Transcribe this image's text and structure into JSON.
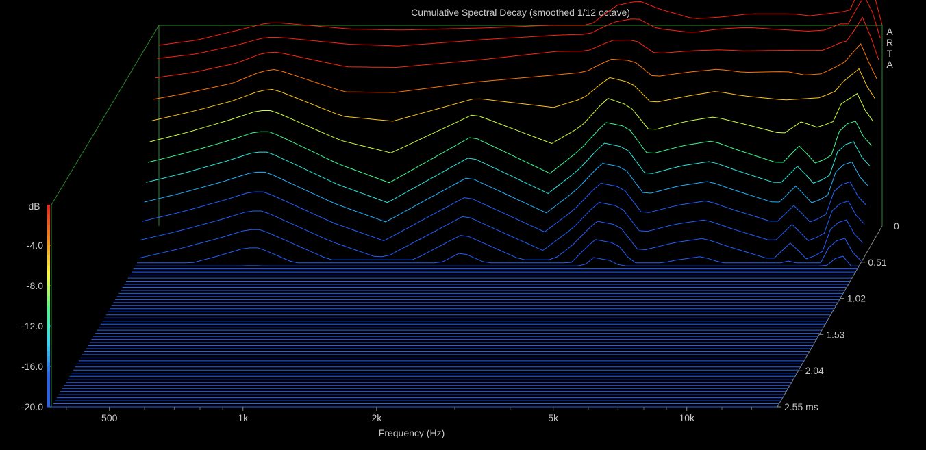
{
  "chart_data": {
    "type": "waterfall",
    "title": "Cumulative Spectral Decay (smoothed 1/12 octave)",
    "xlabel": "Frequency (Hz)",
    "zlabel": "dB",
    "branding": [
      "A",
      "R",
      "T",
      "A"
    ],
    "x_scale": "log",
    "xlim": [
      370,
      16000
    ],
    "x_ticks": [
      500,
      1000,
      2000,
      5000,
      10000
    ],
    "x_tick_labels": [
      "500",
      "1k",
      "2k",
      "5k",
      "10k"
    ],
    "z_range": [
      -20,
      0
    ],
    "z_ticks": [
      0,
      -4,
      -8,
      -12,
      -16,
      -20
    ],
    "z_tick_labels": [
      "0",
      "-4.0",
      "-8.0",
      "-12.0",
      "-16.0",
      "-20.0"
    ],
    "z_top_tick_label": "0",
    "time_range_ms": [
      0,
      2.55
    ],
    "time_ticks_ms": [
      0,
      0.51,
      1.02,
      1.53,
      2.04,
      2.55
    ],
    "time_tick_labels": [
      "",
      "0.51",
      "1.02",
      "1.53",
      "2.04",
      "2.55 ms"
    ],
    "color_scale": [
      "#ff2010",
      "#ff8a00",
      "#ffff20",
      "#40ff80",
      "#20e0ff",
      "#2060ff"
    ],
    "slices": [
      {
        "t_ms": 0.0,
        "freqs": [
          370,
          450,
          560,
          650,
          700,
          1000,
          1300,
          2000,
          3000,
          3500,
          4000,
          4500,
          5000,
          6000,
          7000,
          8000,
          10000,
          11000,
          12000,
          13000,
          13500,
          14000,
          14500,
          15000,
          16000
        ],
        "db": [
          -2.1,
          -1.6,
          -0.6,
          0.1,
          0.1,
          -0.5,
          -0.6,
          -0.4,
          -0.1,
          -0.1,
          1.8,
          2.3,
          1.5,
          0.5,
          0.7,
          1.0,
          1.0,
          0.8,
          1.0,
          1.2,
          1.3,
          2.5,
          5.3,
          4.5,
          -0.1
        ]
      },
      {
        "t_ms": 0.05,
        "freqs": [
          370,
          450,
          560,
          650,
          700,
          1000,
          1300,
          2000,
          3000,
          3500,
          4000,
          4500,
          5000,
          6000,
          7000,
          8000,
          10000,
          11000,
          12000,
          13000,
          13500,
          14000,
          14500,
          15000,
          16000
        ],
        "db": [
          -3.0,
          -2.6,
          -1.7,
          -0.9,
          -0.9,
          -1.6,
          -1.8,
          -1.1,
          -0.6,
          -0.5,
          0.6,
          1.0,
          -0.1,
          -0.4,
          0.0,
          0.1,
          -0.2,
          -0.3,
          -0.2,
          0.5,
          0.4,
          1.5,
          3.2,
          3.0,
          -1.0
        ]
      },
      {
        "t_ms": 0.1,
        "freqs": [
          370,
          450,
          560,
          650,
          700,
          1000,
          1300,
          2000,
          3000,
          3500,
          4000,
          4500,
          5000,
          6000,
          7000,
          8000,
          10000,
          11000,
          12000,
          13000,
          13500,
          14000,
          14500,
          15000,
          16000
        ],
        "db": [
          -4.8,
          -4.2,
          -3.3,
          -2.1,
          -2.0,
          -3.8,
          -3.8,
          -3.0,
          -2.0,
          -2.0,
          -0.9,
          -1.0,
          -2.5,
          -2.0,
          -2.0,
          -2.2,
          -2.0,
          -2.0,
          -2.0,
          -1.3,
          -1.0,
          -0.5,
          2.0,
          0.5,
          -3.0
        ]
      },
      {
        "t_ms": 0.15,
        "freqs": [
          370,
          450,
          560,
          650,
          700,
          1000,
          1300,
          2000,
          3000,
          3500,
          4000,
          4500,
          5000,
          6000,
          7000,
          8000,
          10000,
          11000,
          12000,
          13000,
          13500,
          14000,
          14500,
          15000,
          16000
        ],
        "db": [
          -6.8,
          -6.0,
          -5.0,
          -3.8,
          -3.5,
          -6.2,
          -6.3,
          -5.0,
          -4.5,
          -4.0,
          -2.5,
          -2.7,
          -4.5,
          -4.0,
          -3.5,
          -3.9,
          -3.9,
          -4.5,
          -4.3,
          -3.5,
          -3.0,
          -2.5,
          -0.5,
          -2.5,
          -4.5
        ]
      },
      {
        "t_ms": 0.2,
        "freqs": [
          370,
          450,
          560,
          650,
          700,
          1000,
          1300,
          2000,
          3000,
          3500,
          4000,
          4500,
          5000,
          6000,
          7000,
          8000,
          10000,
          11000,
          12000,
          13000,
          13500,
          14000,
          14500,
          15000,
          16000
        ],
        "db": [
          -8.8,
          -7.8,
          -6.5,
          -5.5,
          -5.5,
          -8.5,
          -9.5,
          -5.8,
          -8.5,
          -7.0,
          -4.0,
          -5.0,
          -7.5,
          -6.5,
          -6.0,
          -6.5,
          -7.5,
          -6.5,
          -6.5,
          -6.0,
          -4.5,
          -4.5,
          -2.5,
          -4.5,
          -6.5
        ]
      },
      {
        "t_ms": 0.25,
        "freqs": [
          370,
          450,
          560,
          650,
          700,
          1000,
          1300,
          2000,
          3000,
          3500,
          4000,
          4500,
          5000,
          6000,
          7000,
          8000,
          10000,
          11000,
          12000,
          13000,
          13500,
          14000,
          14500,
          15000,
          16000
        ],
        "db": [
          -10.8,
          -9.8,
          -8.5,
          -7.5,
          -7.5,
          -11.0,
          -13.0,
          -8.0,
          -12.0,
          -9.5,
          -6.5,
          -7.0,
          -10.0,
          -9.0,
          -8.5,
          -9.5,
          -11.0,
          -9.0,
          -11.0,
          -10.0,
          -7.5,
          -7.0,
          -5.5,
          -7.5,
          -9.0
        ]
      }
    ]
  }
}
